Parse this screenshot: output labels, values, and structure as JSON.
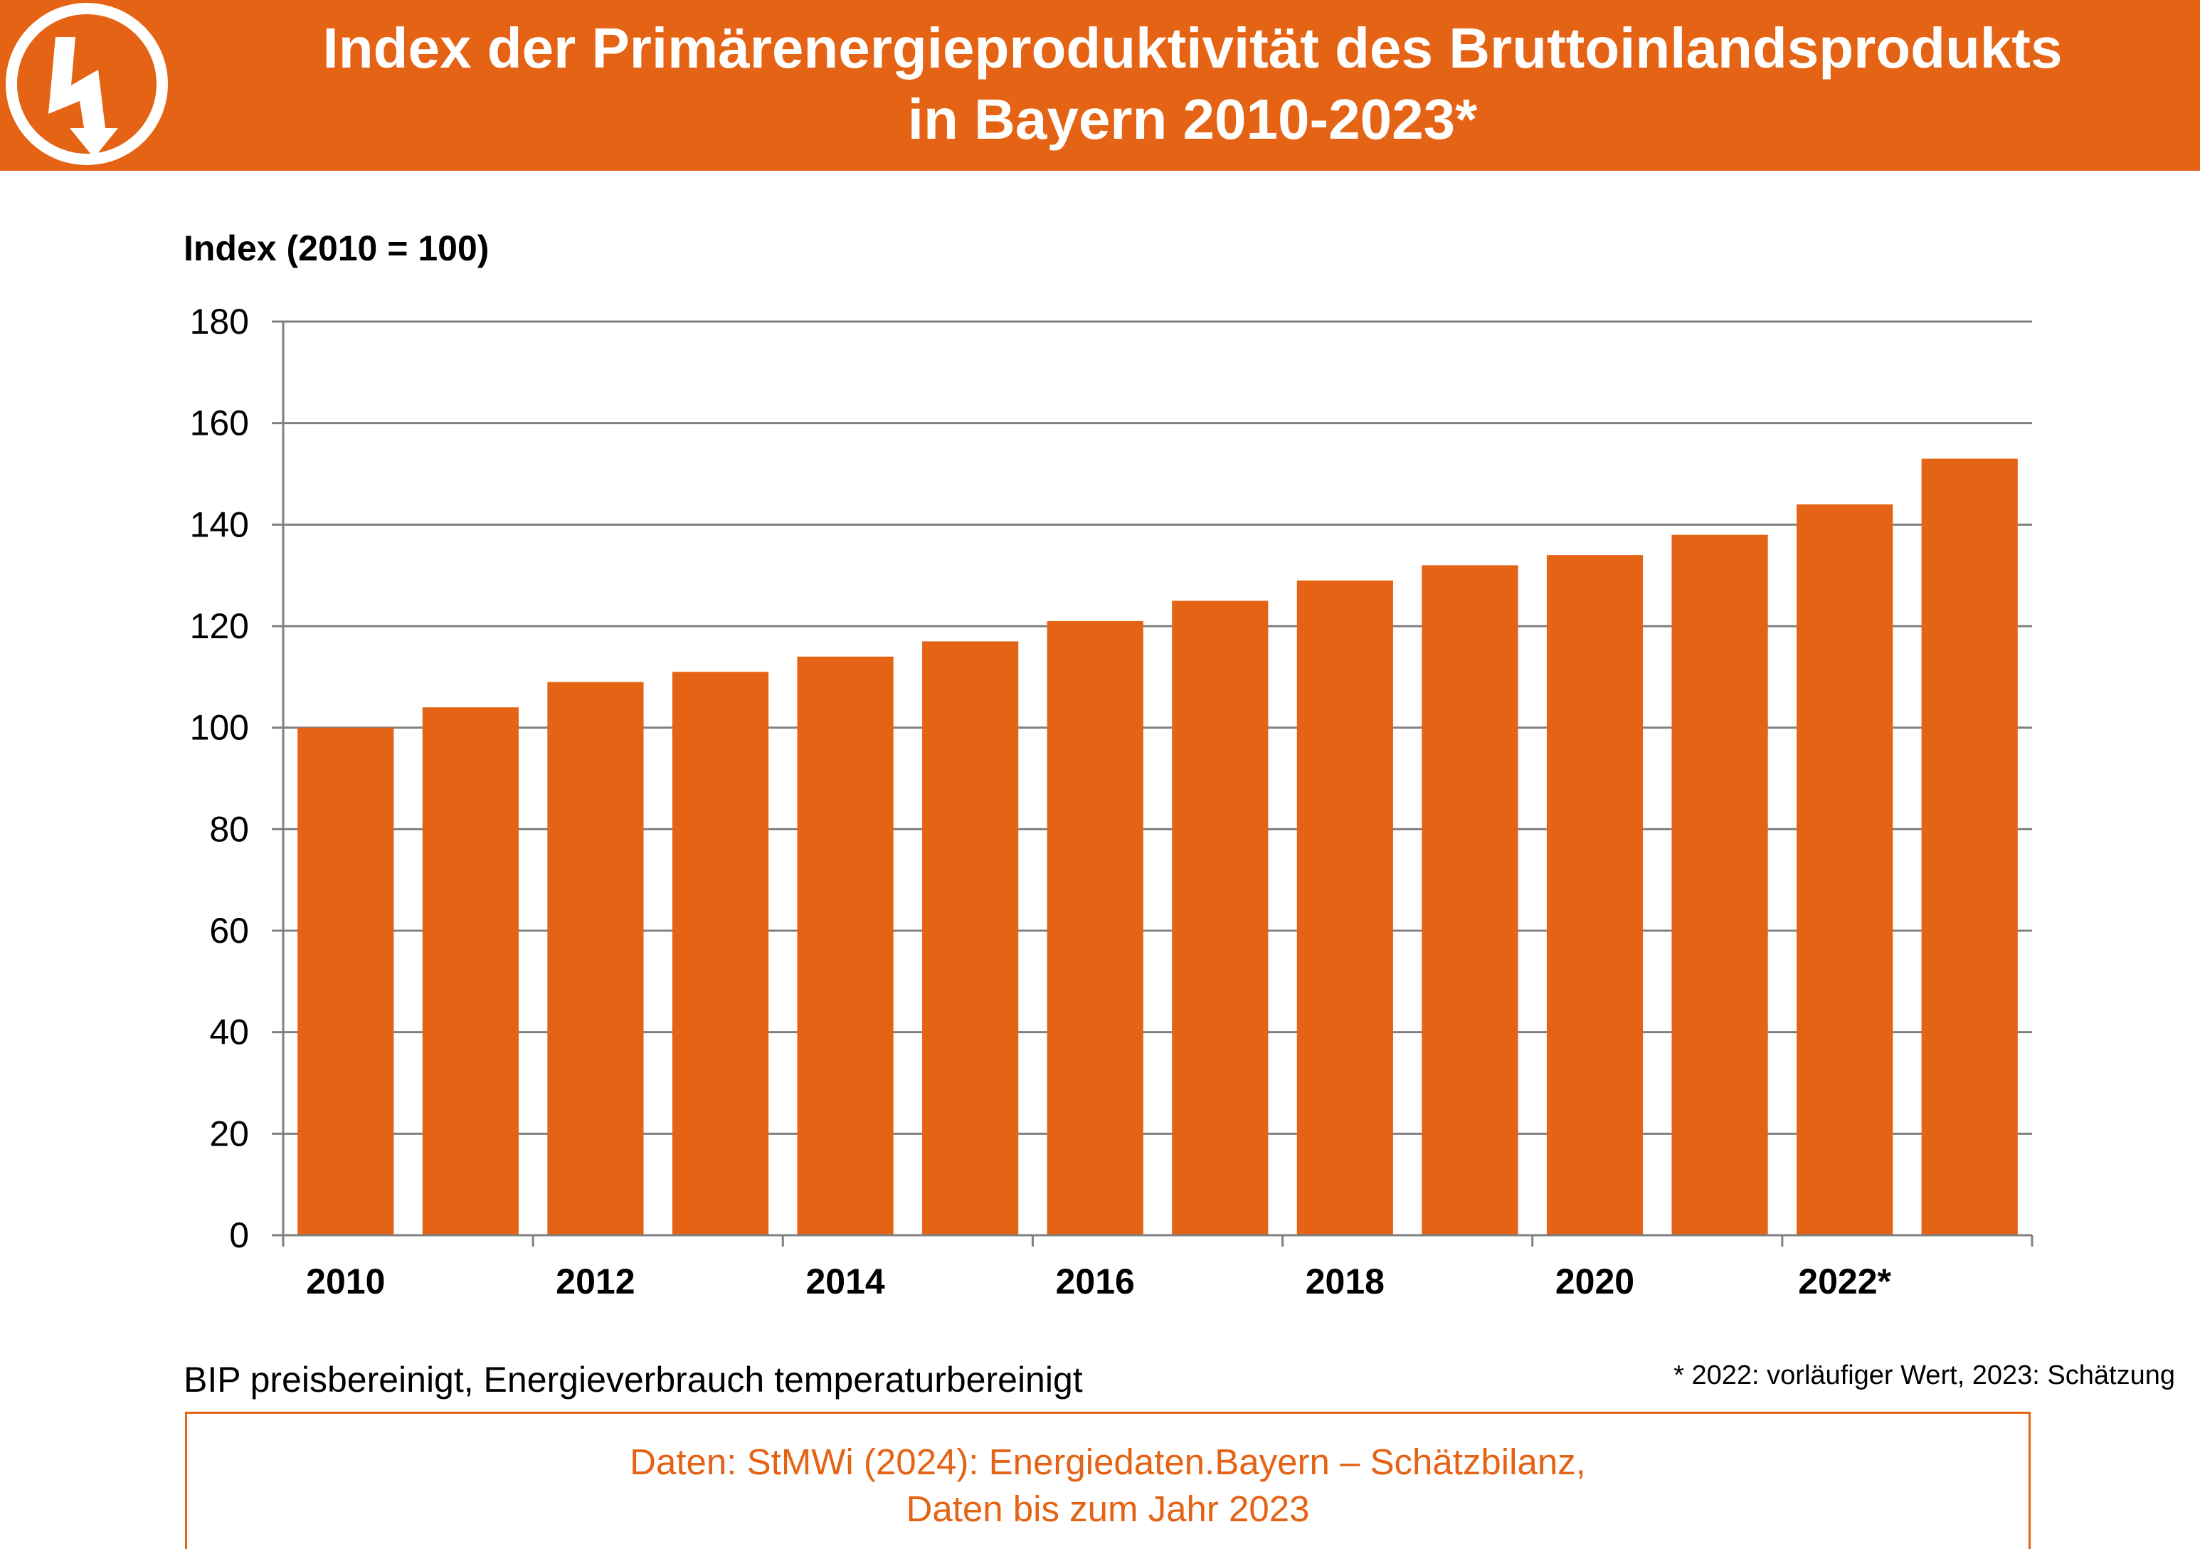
{
  "header": {
    "title_line1": "Index der Primärenergieproduktivität des Bruttoinlandsprodukts",
    "title_line2": "in Bayern 2010-2023*",
    "logo": "lightning-bolt-icon"
  },
  "colors": {
    "accent": "#e46314",
    "bar": "#e46314",
    "grid": "#808080",
    "text": "#000000"
  },
  "chart_data": {
    "type": "bar",
    "ylabel": "Index (2010 = 100)",
    "xlabel": "",
    "ylim": [
      0,
      180
    ],
    "yticks": [
      0,
      20,
      40,
      60,
      80,
      100,
      120,
      140,
      160,
      180
    ],
    "grid": true,
    "categories": [
      "2010",
      "2011",
      "2012",
      "2013",
      "2014",
      "2015",
      "2016",
      "2017",
      "2018",
      "2019",
      "2020",
      "2021",
      "2022*",
      "2023"
    ],
    "tick_labels": [
      "2010",
      "",
      "2012",
      "",
      "2014",
      "",
      "2016",
      "",
      "2018",
      "",
      "2020",
      "",
      "2022*",
      ""
    ],
    "values": [
      100,
      104,
      109,
      111,
      114,
      117,
      121,
      125,
      129,
      132,
      134,
      138,
      144,
      153
    ]
  },
  "notes": {
    "left": "BIP preisbereinigt, Energieverbrauch temperaturbereinigt",
    "right": "* 2022: vorläufiger Wert, 2023: Schätzung"
  },
  "source": {
    "line1": "Daten: StMWi (2024): Energiedaten.Bayern – Schätzbilanz,",
    "line2": "Daten bis zum Jahr 2023"
  }
}
